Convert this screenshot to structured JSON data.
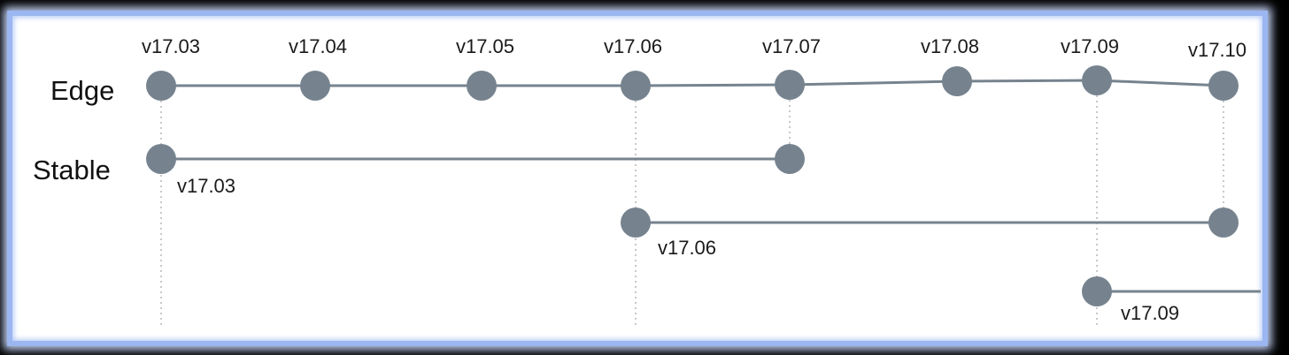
{
  "diagram": {
    "rows": [
      {
        "id": "edge",
        "label": "Edge"
      },
      {
        "id": "stable",
        "label": "Stable"
      }
    ],
    "edge_versions": [
      "v17.03",
      "v17.04",
      "v17.05",
      "v17.06",
      "v17.07",
      "v17.08",
      "v17.09",
      "v17.10"
    ],
    "stable_branches": [
      {
        "label": "v17.03",
        "start": "v17.03",
        "end": "v17.07"
      },
      {
        "label": "v17.06",
        "start": "v17.06",
        "end": "v17.10"
      },
      {
        "label": "v17.09",
        "start": "v17.09",
        "end": null
      }
    ],
    "colors": {
      "node": "#76838f",
      "line": "#76838f",
      "guide": "#b5b5b5",
      "panel_border": "#9bb6f0",
      "background": "#000000"
    }
  }
}
